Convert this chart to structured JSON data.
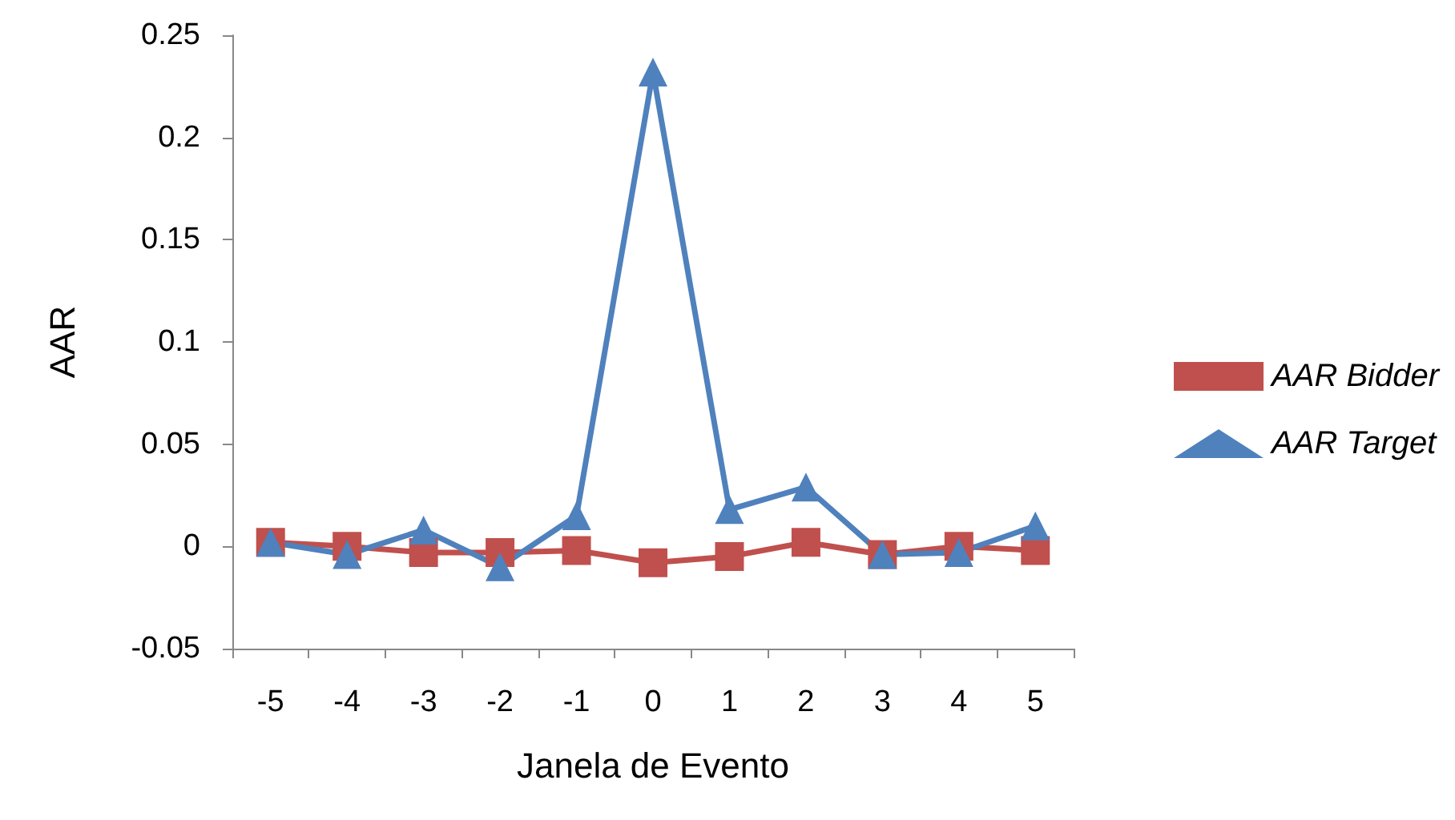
{
  "chart_data": {
    "type": "line",
    "xlabel": "Janela de Evento",
    "ylabel": "AAR",
    "categories": [
      "-5",
      "-4",
      "-3",
      "-2",
      "-1",
      "0",
      "1",
      "2",
      "3",
      "4",
      "5"
    ],
    "series": [
      {
        "name": "AAR Bidder",
        "color": "#c0504d",
        "marker": "square",
        "values": [
          0.002,
          0.0,
          -0.003,
          -0.003,
          -0.002,
          -0.008,
          -0.005,
          0.002,
          -0.004,
          0.0,
          -0.002
        ]
      },
      {
        "name": "AAR Target",
        "color": "#4f81bd",
        "marker": "triangle",
        "values": [
          0.002,
          -0.004,
          0.008,
          -0.01,
          0.015,
          0.232,
          0.018,
          0.029,
          -0.004,
          -0.003,
          0.01
        ]
      }
    ],
    "ylim": [
      -0.05,
      0.25
    ],
    "yticks": [
      -0.05,
      0,
      0.05,
      0.1,
      0.15,
      0.2,
      0.25
    ],
    "grid": false,
    "legend": "right"
  }
}
